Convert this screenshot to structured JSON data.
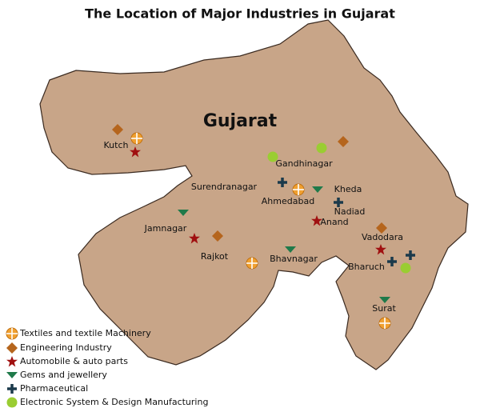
{
  "title": "The Location of Major Industries in Gujarat",
  "region_label": "Gujarat",
  "cities": [
    "Kutch",
    "Gandhinagar",
    "Surendranagar",
    "Ahmedabad",
    "Kheda",
    "Nadiad",
    "Anand",
    "Jamnagar",
    "Rajkot",
    "Bhavnagar",
    "Vadodara",
    "Bharuch",
    "Surat"
  ],
  "legend": [
    "Textiles and textile Machinery",
    "Engineering Industry",
    "Automobile & auto parts",
    "Gems and jewellery",
    "Pharmaceutical",
    "Electronic System & Design Manufacturing"
  ]
}
